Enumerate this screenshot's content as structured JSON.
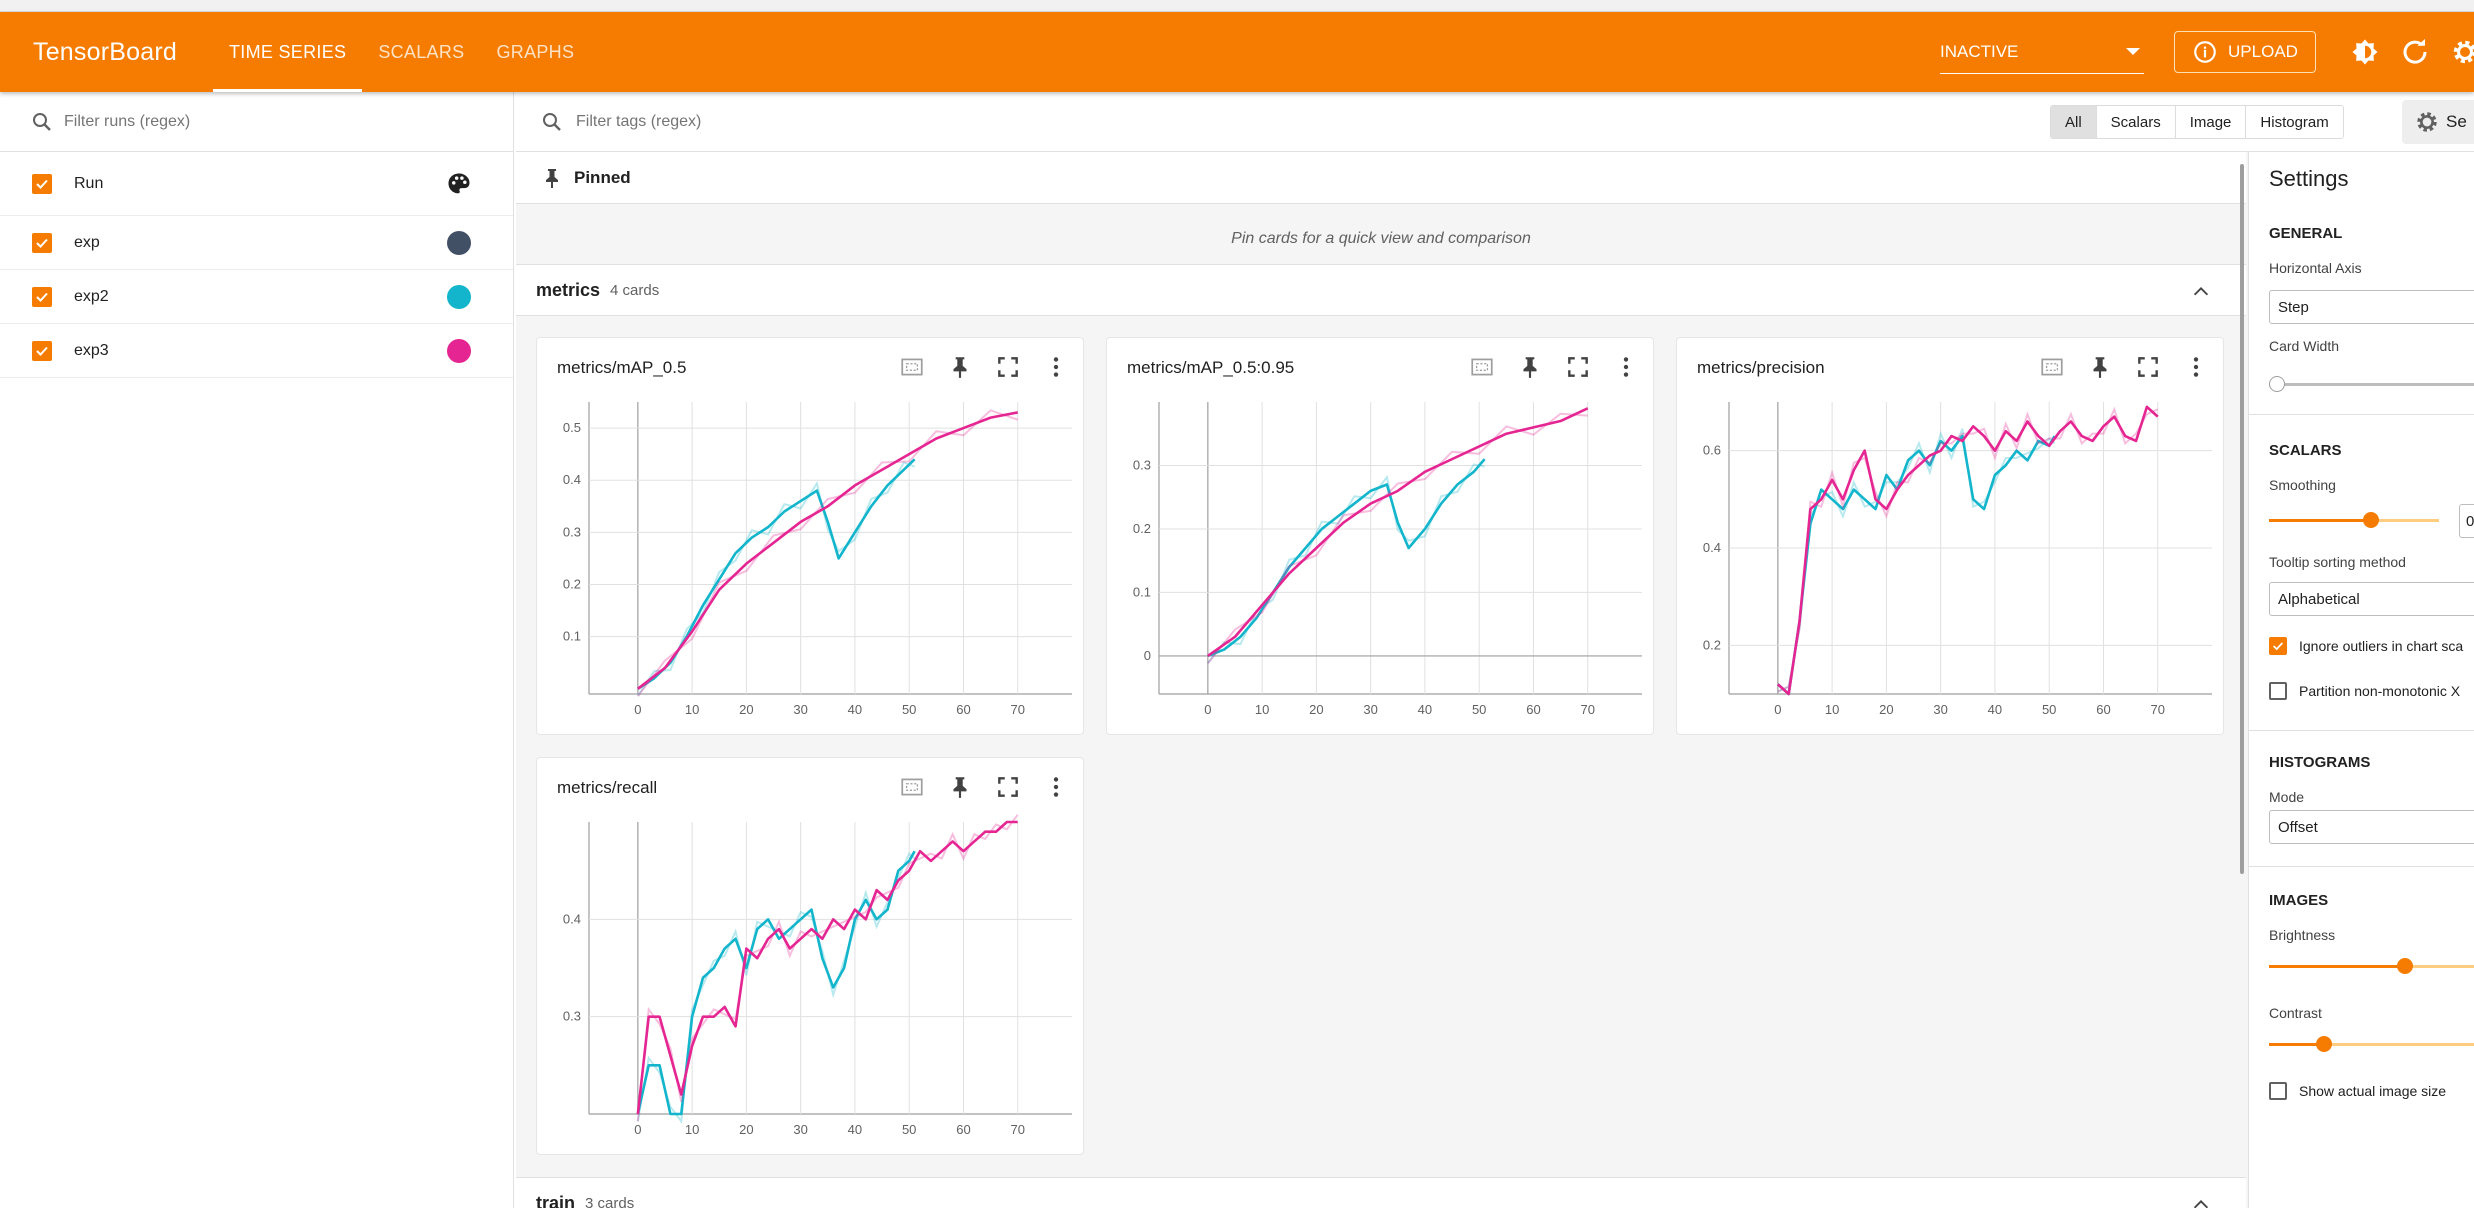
{
  "header": {
    "brand": "TensorBoard",
    "tabs": [
      {
        "label": "TIME SERIES",
        "active": true
      },
      {
        "label": "SCALARS",
        "active": false
      },
      {
        "label": "GRAPHS",
        "active": false
      }
    ],
    "status_select": "INACTIVE",
    "upload_label": "UPLOAD"
  },
  "sidebar": {
    "filter_placeholder": "Filter runs (regex)",
    "header_label": "Run",
    "runs": [
      {
        "label": "exp",
        "color": "#425066"
      },
      {
        "label": "exp2",
        "color": "#12b5cb"
      },
      {
        "label": "exp3",
        "color": "#e52592"
      }
    ]
  },
  "main": {
    "tag_filter_placeholder": "Filter tags (regex)",
    "type_filters": [
      "All",
      "Scalars",
      "Image",
      "Histogram"
    ],
    "settings_button": "Se",
    "pinned_title": "Pinned",
    "pinned_empty": "Pin cards for a quick view and comparison",
    "groups": [
      {
        "name": "metrics",
        "count": "4 cards"
      },
      {
        "name": "train",
        "count": "3 cards"
      }
    ]
  },
  "settings": {
    "title": "Settings",
    "general": "GENERAL",
    "horizontal_axis_label": "Horizontal Axis",
    "horizontal_axis_value": "Step",
    "card_width_label": "Card Width",
    "scalars": "SCALARS",
    "smoothing_label": "Smoothing",
    "smoothing_value": "0",
    "smoothing_fraction": 0.6,
    "tooltip_label": "Tooltip sorting method",
    "tooltip_value": "Alphabetical",
    "ignore_outliers": "Ignore outliers in chart sca",
    "partition": "Partition non-monotonic X",
    "histograms": "HISTOGRAMS",
    "mode_label": "Mode",
    "mode_value": "Offset",
    "images": "IMAGES",
    "brightness_label": "Brightness",
    "brightness_fraction": 0.62,
    "contrast_label": "Contrast",
    "contrast_fraction": 0.25,
    "show_actual": "Show actual image size"
  },
  "chart_data": [
    {
      "type": "line",
      "title": "metrics/mAP_0.5",
      "x_ticks": [
        "0",
        "10",
        "20",
        "30",
        "40",
        "50",
        "60",
        "70"
      ],
      "y_ticks": [
        "0.1",
        "0.2",
        "0.3",
        "0.4",
        "0.5"
      ],
      "xlim": [
        -9,
        80
      ],
      "ylim": [
        -0.01,
        0.55
      ],
      "series": [
        {
          "color": "#12b5cb",
          "x": [
            0,
            3,
            6,
            9,
            12,
            15,
            18,
            21,
            24,
            27,
            30,
            33,
            35,
            37,
            40,
            43,
            46,
            49,
            51
          ],
          "y": [
            0.0,
            0.02,
            0.05,
            0.1,
            0.16,
            0.21,
            0.26,
            0.29,
            0.31,
            0.34,
            0.36,
            0.38,
            0.32,
            0.25,
            0.3,
            0.35,
            0.39,
            0.42,
            0.44
          ]
        },
        {
          "color": "#e52592",
          "x": [
            0,
            5,
            10,
            15,
            20,
            25,
            30,
            35,
            40,
            45,
            50,
            55,
            60,
            65,
            70
          ],
          "y": [
            0.0,
            0.04,
            0.11,
            0.19,
            0.24,
            0.28,
            0.32,
            0.35,
            0.39,
            0.42,
            0.45,
            0.48,
            0.5,
            0.52,
            0.53
          ]
        }
      ]
    },
    {
      "type": "line",
      "title": "metrics/mAP_0.5:0.95",
      "x_ticks": [
        "0",
        "10",
        "20",
        "30",
        "40",
        "50",
        "60",
        "70"
      ],
      "y_ticks": [
        "0",
        "0.1",
        "0.2",
        "0.3"
      ],
      "xlim": [
        -9,
        80
      ],
      "ylim": [
        -0.06,
        0.4
      ],
      "series": [
        {
          "color": "#12b5cb",
          "x": [
            0,
            3,
            6,
            9,
            12,
            15,
            18,
            21,
            24,
            27,
            30,
            33,
            35,
            37,
            40,
            43,
            46,
            49,
            51
          ],
          "y": [
            0.0,
            0.01,
            0.03,
            0.06,
            0.1,
            0.14,
            0.17,
            0.2,
            0.22,
            0.24,
            0.26,
            0.27,
            0.21,
            0.17,
            0.2,
            0.24,
            0.27,
            0.29,
            0.31
          ]
        },
        {
          "color": "#e52592",
          "x": [
            0,
            5,
            10,
            15,
            20,
            25,
            30,
            35,
            40,
            45,
            50,
            55,
            60,
            65,
            70
          ],
          "y": [
            0.0,
            0.03,
            0.08,
            0.13,
            0.17,
            0.21,
            0.24,
            0.26,
            0.29,
            0.31,
            0.33,
            0.35,
            0.36,
            0.37,
            0.39
          ]
        }
      ]
    },
    {
      "type": "line",
      "title": "metrics/precision",
      "x_ticks": [
        "0",
        "10",
        "20",
        "30",
        "40",
        "50",
        "60",
        "70"
      ],
      "y_ticks": [
        "0.2",
        "0.4",
        "0.6"
      ],
      "xlim": [
        -9,
        80
      ],
      "ylim": [
        0.1,
        0.7
      ],
      "series": [
        {
          "color": "#12b5cb",
          "x": [
            0,
            2,
            4,
            6,
            8,
            10,
            12,
            14,
            16,
            18,
            20,
            22,
            24,
            26,
            28,
            30,
            32,
            34,
            36,
            38,
            40,
            42,
            44,
            46,
            48,
            50,
            51
          ],
          "y": [
            0.12,
            0.1,
            0.25,
            0.45,
            0.52,
            0.5,
            0.48,
            0.52,
            0.5,
            0.48,
            0.55,
            0.52,
            0.58,
            0.6,
            0.57,
            0.62,
            0.6,
            0.63,
            0.5,
            0.48,
            0.55,
            0.57,
            0.6,
            0.58,
            0.62,
            0.61,
            0.63
          ]
        },
        {
          "color": "#e52592",
          "x": [
            0,
            2,
            4,
            6,
            8,
            10,
            12,
            14,
            16,
            18,
            20,
            22,
            24,
            26,
            28,
            30,
            32,
            34,
            36,
            38,
            40,
            42,
            44,
            46,
            48,
            50,
            52,
            54,
            56,
            58,
            60,
            62,
            64,
            66,
            68,
            70
          ],
          "y": [
            0.12,
            0.1,
            0.25,
            0.48,
            0.5,
            0.54,
            0.5,
            0.56,
            0.6,
            0.5,
            0.48,
            0.52,
            0.55,
            0.57,
            0.59,
            0.6,
            0.63,
            0.62,
            0.65,
            0.63,
            0.6,
            0.64,
            0.62,
            0.66,
            0.63,
            0.61,
            0.64,
            0.66,
            0.63,
            0.62,
            0.65,
            0.67,
            0.63,
            0.62,
            0.69,
            0.67
          ]
        }
      ]
    },
    {
      "type": "line",
      "title": "metrics/recall",
      "x_ticks": [
        "0",
        "10",
        "20",
        "30",
        "40",
        "50",
        "60",
        "70"
      ],
      "y_ticks": [
        "0.3",
        "0.4"
      ],
      "xlim": [
        -9,
        80
      ],
      "ylim": [
        0.2,
        0.5
      ],
      "series": [
        {
          "color": "#12b5cb",
          "x": [
            0,
            2,
            4,
            6,
            8,
            10,
            12,
            14,
            16,
            18,
            20,
            22,
            24,
            26,
            28,
            30,
            32,
            34,
            36,
            38,
            40,
            42,
            44,
            46,
            48,
            50,
            51
          ],
          "y": [
            0.2,
            0.25,
            0.25,
            0.2,
            0.2,
            0.3,
            0.34,
            0.35,
            0.37,
            0.38,
            0.35,
            0.39,
            0.4,
            0.38,
            0.39,
            0.4,
            0.41,
            0.36,
            0.33,
            0.35,
            0.4,
            0.42,
            0.4,
            0.41,
            0.45,
            0.46,
            0.47
          ]
        },
        {
          "color": "#e52592",
          "x": [
            0,
            2,
            4,
            6,
            8,
            10,
            12,
            14,
            16,
            18,
            20,
            22,
            24,
            26,
            28,
            30,
            32,
            34,
            36,
            38,
            40,
            42,
            44,
            46,
            48,
            50,
            52,
            54,
            56,
            58,
            60,
            62,
            64,
            66,
            68,
            70
          ],
          "y": [
            0.2,
            0.3,
            0.3,
            0.26,
            0.22,
            0.27,
            0.3,
            0.3,
            0.31,
            0.29,
            0.37,
            0.36,
            0.38,
            0.39,
            0.37,
            0.38,
            0.39,
            0.38,
            0.4,
            0.39,
            0.41,
            0.4,
            0.43,
            0.42,
            0.44,
            0.45,
            0.47,
            0.46,
            0.47,
            0.48,
            0.47,
            0.48,
            0.49,
            0.49,
            0.5,
            0.5
          ]
        }
      ]
    }
  ]
}
